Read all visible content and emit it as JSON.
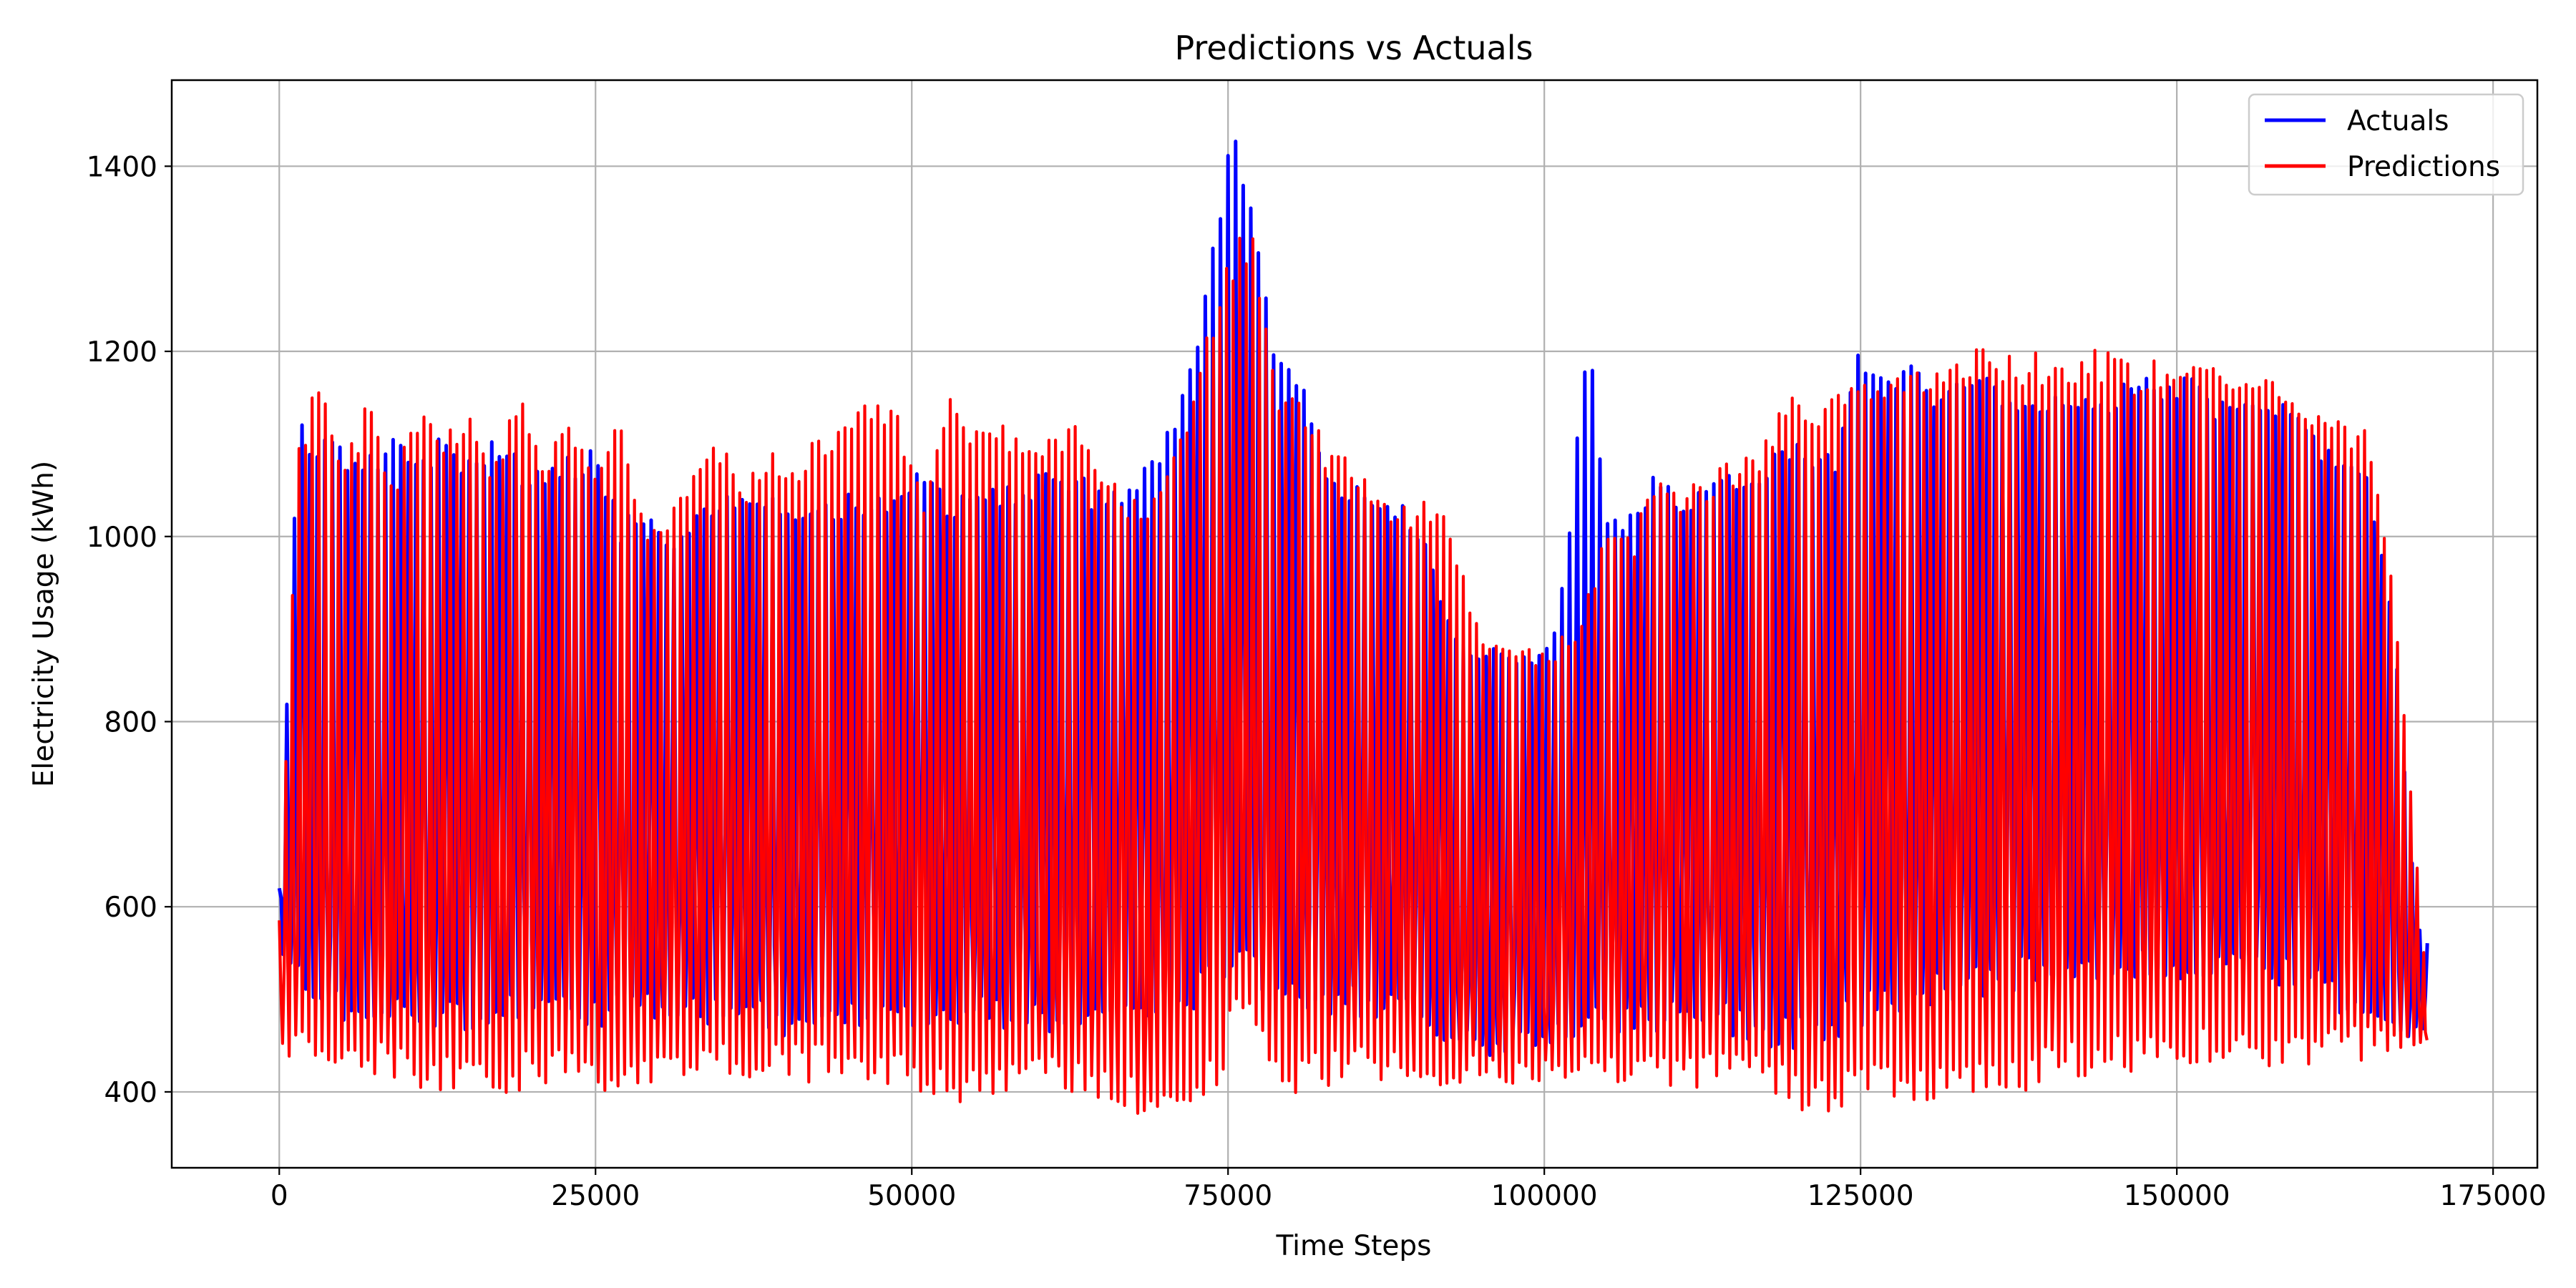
{
  "chart_data": {
    "type": "line",
    "title": "Predictions vs Actuals",
    "xlabel": "Time Steps",
    "ylabel": "Electricity Usage (kWh)",
    "xlim": [
      -8500,
      178500
    ],
    "ylim": [
      318,
      1493
    ],
    "xticks": [
      0,
      25000,
      50000,
      75000,
      100000,
      125000,
      150000,
      175000
    ],
    "xtick_labels": [
      "0",
      "25000",
      "50000",
      "75000",
      "100000",
      "125000",
      "150000",
      "175000"
    ],
    "yticks": [
      400,
      600,
      800,
      1000,
      1200,
      1400
    ],
    "ytick_labels": [
      "400",
      "600",
      "800",
      "1000",
      "1200",
      "1400"
    ],
    "grid": true,
    "legend": "top-right",
    "x_range": [
      0,
      169900
    ],
    "series": [
      {
        "name": "Actuals",
        "color": "#0000ff",
        "upper_envelope": [
          [
            0,
            620
          ],
          [
            1500,
            1130
          ],
          [
            3000,
            1110
          ],
          [
            5000,
            1105
          ],
          [
            7000,
            1090
          ],
          [
            9000,
            1110
          ],
          [
            11000,
            1080
          ],
          [
            13000,
            1115
          ],
          [
            15000,
            1090
          ],
          [
            17000,
            1105
          ],
          [
            19000,
            1085
          ],
          [
            21000,
            1070
          ],
          [
            23000,
            1090
          ],
          [
            25000,
            1100
          ],
          [
            27000,
            1020
          ],
          [
            29000,
            1030
          ],
          [
            31000,
            1010
          ],
          [
            33000,
            1040
          ],
          [
            35000,
            1050
          ],
          [
            37000,
            1050
          ],
          [
            39000,
            1060
          ],
          [
            41000,
            1030
          ],
          [
            43000,
            1040
          ],
          [
            45000,
            1050
          ],
          [
            47000,
            1040
          ],
          [
            49000,
            1060
          ],
          [
            51000,
            1085
          ],
          [
            53000,
            1040
          ],
          [
            55000,
            1070
          ],
          [
            57000,
            1060
          ],
          [
            59000,
            1050
          ],
          [
            61000,
            1090
          ],
          [
            63000,
            1070
          ],
          [
            65000,
            1050
          ],
          [
            67000,
            1060
          ],
          [
            69000,
            1090
          ],
          [
            71000,
            1150
          ],
          [
            73000,
            1260
          ],
          [
            75000,
            1440
          ],
          [
            76000,
            1440
          ],
          [
            77000,
            1360
          ],
          [
            79000,
            1190
          ],
          [
            81000,
            1170
          ],
          [
            83000,
            1080
          ],
          [
            85000,
            1060
          ],
          [
            87000,
            1040
          ],
          [
            89000,
            1040
          ],
          [
            91000,
            990
          ],
          [
            93000,
            890
          ],
          [
            95000,
            890
          ],
          [
            97000,
            880
          ],
          [
            99000,
            880
          ],
          [
            101000,
            900
          ],
          [
            103500,
            1230
          ],
          [
            105000,
            1040
          ],
          [
            107000,
            1030
          ],
          [
            109000,
            1080
          ],
          [
            111000,
            1050
          ],
          [
            113000,
            1060
          ],
          [
            115000,
            1070
          ],
          [
            117000,
            1060
          ],
          [
            119000,
            1110
          ],
          [
            121000,
            1090
          ],
          [
            123000,
            1100
          ],
          [
            125000,
            1215
          ],
          [
            127000,
            1180
          ],
          [
            129000,
            1200
          ],
          [
            131000,
            1160
          ],
          [
            133000,
            1170
          ],
          [
            135000,
            1180
          ],
          [
            137000,
            1170
          ],
          [
            139000,
            1150
          ],
          [
            141000,
            1160
          ],
          [
            143000,
            1170
          ],
          [
            145000,
            1160
          ],
          [
            147000,
            1185
          ],
          [
            149000,
            1180
          ],
          [
            151000,
            1180
          ],
          [
            153000,
            1150
          ],
          [
            155000,
            1160
          ],
          [
            157000,
            1150
          ],
          [
            159000,
            1160
          ],
          [
            161000,
            1120
          ],
          [
            163000,
            1080
          ],
          [
            165000,
            1080
          ],
          [
            167000,
            940
          ],
          [
            169000,
            580
          ],
          [
            169900,
            560
          ]
        ],
        "lower_envelope": [
          [
            0,
            560
          ],
          [
            2000,
            480
          ],
          [
            5000,
            470
          ],
          [
            10000,
            470
          ],
          [
            15000,
            465
          ],
          [
            20000,
            470
          ],
          [
            25000,
            470
          ],
          [
            30000,
            475
          ],
          [
            35000,
            470
          ],
          [
            40000,
            460
          ],
          [
            45000,
            465
          ],
          [
            50000,
            460
          ],
          [
            55000,
            470
          ],
          [
            60000,
            465
          ],
          [
            65000,
            460
          ],
          [
            70000,
            470
          ],
          [
            75000,
            510
          ],
          [
            80000,
            490
          ],
          [
            85000,
            480
          ],
          [
            90000,
            470
          ],
          [
            92000,
            450
          ],
          [
            94000,
            440
          ],
          [
            96000,
            430
          ],
          [
            98000,
            440
          ],
          [
            100000,
            445
          ],
          [
            105000,
            460
          ],
          [
            110000,
            465
          ],
          [
            115000,
            460
          ],
          [
            120000,
            440
          ],
          [
            125000,
            470
          ],
          [
            130000,
            490
          ],
          [
            135000,
            500
          ],
          [
            140000,
            520
          ],
          [
            145000,
            515
          ],
          [
            150000,
            520
          ],
          [
            155000,
            515
          ],
          [
            160000,
            510
          ],
          [
            165000,
            460
          ],
          [
            167000,
            450
          ],
          [
            169900,
            470
          ]
        ]
      },
      {
        "name": "Predictions",
        "color": "#ff0000",
        "upper_envelope": [
          [
            0,
            590
          ],
          [
            1500,
            1100
          ],
          [
            3000,
            1175
          ],
          [
            5000,
            1080
          ],
          [
            7000,
            1150
          ],
          [
            9000,
            1060
          ],
          [
            11000,
            1145
          ],
          [
            13000,
            1100
          ],
          [
            15000,
            1160
          ],
          [
            17000,
            1080
          ],
          [
            19000,
            1170
          ],
          [
            21000,
            1090
          ],
          [
            23000,
            1140
          ],
          [
            25000,
            1080
          ],
          [
            27000,
            1135
          ],
          [
            29000,
            1010
          ],
          [
            31000,
            1030
          ],
          [
            33000,
            1080
          ],
          [
            35000,
            1105
          ],
          [
            37000,
            1060
          ],
          [
            39000,
            1100
          ],
          [
            41000,
            1090
          ],
          [
            43000,
            1120
          ],
          [
            45000,
            1140
          ],
          [
            47000,
            1150
          ],
          [
            49000,
            1140
          ],
          [
            51000,
            1040
          ],
          [
            53000,
            1150
          ],
          [
            55000,
            1130
          ],
          [
            57000,
            1130
          ],
          [
            59000,
            1120
          ],
          [
            61000,
            1120
          ],
          [
            63000,
            1130
          ],
          [
            65000,
            1090
          ],
          [
            67000,
            1050
          ],
          [
            69000,
            1050
          ],
          [
            71000,
            1100
          ],
          [
            73000,
            1220
          ],
          [
            75000,
            1295
          ],
          [
            76000,
            1335
          ],
          [
            77000,
            1330
          ],
          [
            79000,
            1165
          ],
          [
            81000,
            1140
          ],
          [
            83000,
            1100
          ],
          [
            85000,
            1090
          ],
          [
            87000,
            1040
          ],
          [
            89000,
            1040
          ],
          [
            91000,
            1045
          ],
          [
            93000,
            1000
          ],
          [
            95000,
            890
          ],
          [
            97000,
            880
          ],
          [
            99000,
            880
          ],
          [
            101000,
            885
          ],
          [
            103000,
            920
          ],
          [
            105000,
            1010
          ],
          [
            107000,
            1000
          ],
          [
            109000,
            1090
          ],
          [
            111000,
            1050
          ],
          [
            113000,
            1070
          ],
          [
            115000,
            1085
          ],
          [
            117000,
            1090
          ],
          [
            119000,
            1150
          ],
          [
            121000,
            1150
          ],
          [
            123000,
            1160
          ],
          [
            125000,
            1175
          ],
          [
            127000,
            1180
          ],
          [
            129000,
            1175
          ],
          [
            131000,
            1190
          ],
          [
            133000,
            1200
          ],
          [
            135000,
            1215
          ],
          [
            137000,
            1200
          ],
          [
            139000,
            1200
          ],
          [
            141000,
            1190
          ],
          [
            143000,
            1205
          ],
          [
            145000,
            1200
          ],
          [
            147000,
            1180
          ],
          [
            149000,
            1200
          ],
          [
            151000,
            1200
          ],
          [
            153000,
            1200
          ],
          [
            155000,
            1170
          ],
          [
            157000,
            1180
          ],
          [
            159000,
            1175
          ],
          [
            161000,
            1140
          ],
          [
            163000,
            1135
          ],
          [
            165000,
            1120
          ],
          [
            167000,
            970
          ],
          [
            169000,
            650
          ],
          [
            169900,
            480
          ]
        ],
        "lower_envelope": [
          [
            0,
            440
          ],
          [
            2000,
            430
          ],
          [
            4000,
            420
          ],
          [
            6000,
            410
          ],
          [
            8000,
            420
          ],
          [
            10000,
            405
          ],
          [
            14000,
            400
          ],
          [
            18000,
            398
          ],
          [
            22000,
            405
          ],
          [
            26000,
            400
          ],
          [
            30000,
            410
          ],
          [
            34000,
            420
          ],
          [
            38000,
            415
          ],
          [
            42000,
            410
          ],
          [
            46000,
            410
          ],
          [
            50000,
            400
          ],
          [
            54000,
            385
          ],
          [
            58000,
            400
          ],
          [
            62000,
            395
          ],
          [
            66000,
            390
          ],
          [
            68000,
            375
          ],
          [
            72000,
            390
          ],
          [
            74000,
            385
          ],
          [
            76000,
            480
          ],
          [
            78000,
            430
          ],
          [
            80000,
            395
          ],
          [
            84000,
            410
          ],
          [
            88000,
            410
          ],
          [
            90000,
            400
          ],
          [
            94000,
            410
          ],
          [
            98000,
            405
          ],
          [
            102000,
            410
          ],
          [
            106000,
            410
          ],
          [
            110000,
            400
          ],
          [
            114000,
            405
          ],
          [
            118000,
            395
          ],
          [
            121000,
            375
          ],
          [
            123000,
            380
          ],
          [
            126000,
            395
          ],
          [
            130000,
            380
          ],
          [
            134000,
            395
          ],
          [
            138000,
            400
          ],
          [
            142000,
            410
          ],
          [
            146000,
            420
          ],
          [
            150000,
            430
          ],
          [
            154000,
            420
          ],
          [
            158000,
            425
          ],
          [
            162000,
            430
          ],
          [
            166000,
            430
          ],
          [
            168000,
            440
          ],
          [
            169900,
            455
          ]
        ]
      }
    ]
  }
}
